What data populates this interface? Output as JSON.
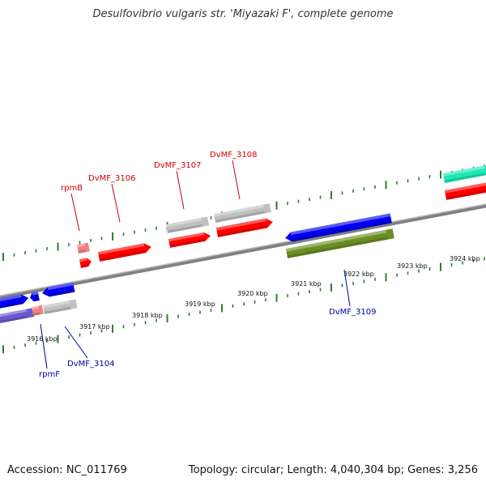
{
  "title": "Desulfovibrio vulgaris str. 'Miyazaki F', complete genome",
  "footer": {
    "accession": "Accession: NC_011769",
    "summary": "Topology: circular; Length: 4,040,304 bp; Genes: 3,256"
  },
  "colors": {
    "backbone": "#808080",
    "ruler_tick": "#2e7d32",
    "forward_label": "#cc0000",
    "reverse_label": "#0000aa",
    "feature_red": "#ff0000",
    "feature_blue": "#0000ee",
    "feature_gray": "#c0c0c0",
    "feature_olive": "#6b8e23",
    "feature_pink": "#f08080",
    "feature_purple": "#6a5acd",
    "feature_teal": "#1de9b6"
  },
  "ruler": {
    "ticks": [
      {
        "label": "3916 kbp"
      },
      {
        "label": "3917 kbp"
      },
      {
        "label": "3918 kbp"
      },
      {
        "label": "3919 kbp"
      },
      {
        "label": "3920 kbp"
      },
      {
        "label": "3921 kbp"
      },
      {
        "label": "3922 kbp"
      },
      {
        "label": "3923 kbp"
      },
      {
        "label": "3924 kbp"
      }
    ]
  },
  "gene_labels": {
    "forward": [
      {
        "name": "rpmB"
      },
      {
        "name": "DvMF_3106"
      },
      {
        "name": "DvMF_3107"
      },
      {
        "name": "DvMF_3108"
      }
    ],
    "reverse": [
      {
        "name": "rpmF"
      },
      {
        "name": "DvMF_3104"
      },
      {
        "name": "DvMF_3109"
      }
    ]
  },
  "features": [
    {
      "id": "f-blue-left-1",
      "color_key": "feature_blue"
    },
    {
      "id": "f-blue-left-2",
      "color_key": "feature_blue"
    },
    {
      "id": "f-blue-left-3",
      "color_key": "feature_blue"
    },
    {
      "id": "f-purple-left",
      "color_key": "feature_purple"
    },
    {
      "id": "f-pink-rpmF",
      "color_key": "feature_pink"
    },
    {
      "id": "f-gray-3104",
      "color_key": "feature_gray"
    },
    {
      "id": "f-pink-rpmB",
      "color_key": "feature_pink"
    },
    {
      "id": "f-red-rpmB",
      "color_key": "feature_red"
    },
    {
      "id": "f-red-3106",
      "color_key": "feature_red"
    },
    {
      "id": "f-gray-3107",
      "color_key": "feature_gray"
    },
    {
      "id": "f-red-3107",
      "color_key": "feature_red"
    },
    {
      "id": "f-gray-3108",
      "color_key": "feature_gray"
    },
    {
      "id": "f-red-3108",
      "color_key": "feature_red"
    },
    {
      "id": "f-blue-3109",
      "color_key": "feature_blue"
    },
    {
      "id": "f-olive-3109",
      "color_key": "feature_olive"
    },
    {
      "id": "f-teal-right",
      "color_key": "feature_teal"
    },
    {
      "id": "f-red-right",
      "color_key": "feature_red"
    }
  ]
}
